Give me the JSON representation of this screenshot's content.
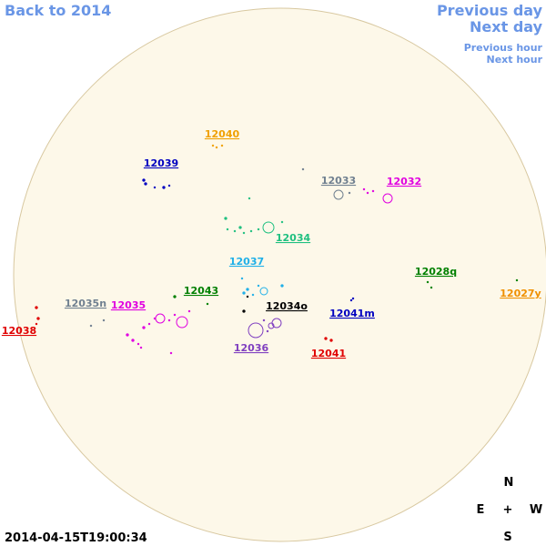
{
  "nav": {
    "back": "Back to 2014",
    "previous_day": "Previous day",
    "next_day": "Next day",
    "previous_hour": "Previous hour",
    "next_hour": "Next hour"
  },
  "regions": [
    {
      "label": "12040",
      "color": "#f0a000"
    },
    {
      "label": "12039",
      "color": "#0000c0"
    },
    {
      "label": "12033",
      "color": "#708090"
    },
    {
      "label": "12032",
      "color": "#e000e0"
    },
    {
      "label": "12034",
      "color": "#20c080"
    },
    {
      "label": "12037",
      "color": "#20b0e8"
    },
    {
      "label": "12028q",
      "color": "#008000"
    },
    {
      "label": "12027y",
      "color": "#f09000"
    },
    {
      "label": "12043",
      "color": "#008000"
    },
    {
      "label": "12035n",
      "color": "#708090"
    },
    {
      "label": "12035",
      "color": "#e000e0"
    },
    {
      "label": "12034o",
      "color": "#000000"
    },
    {
      "label": "12041m",
      "color": "#0000c0"
    },
    {
      "label": "12038",
      "color": "#e00000"
    },
    {
      "label": "12036",
      "color": "#8040c0"
    },
    {
      "label": "12041",
      "color": "#e00000"
    }
  ],
  "compass": {
    "north": "N",
    "east": "E",
    "center": "+",
    "west": "W",
    "south": "S"
  },
  "timestamp": "2014-04-15T19:00:34"
}
